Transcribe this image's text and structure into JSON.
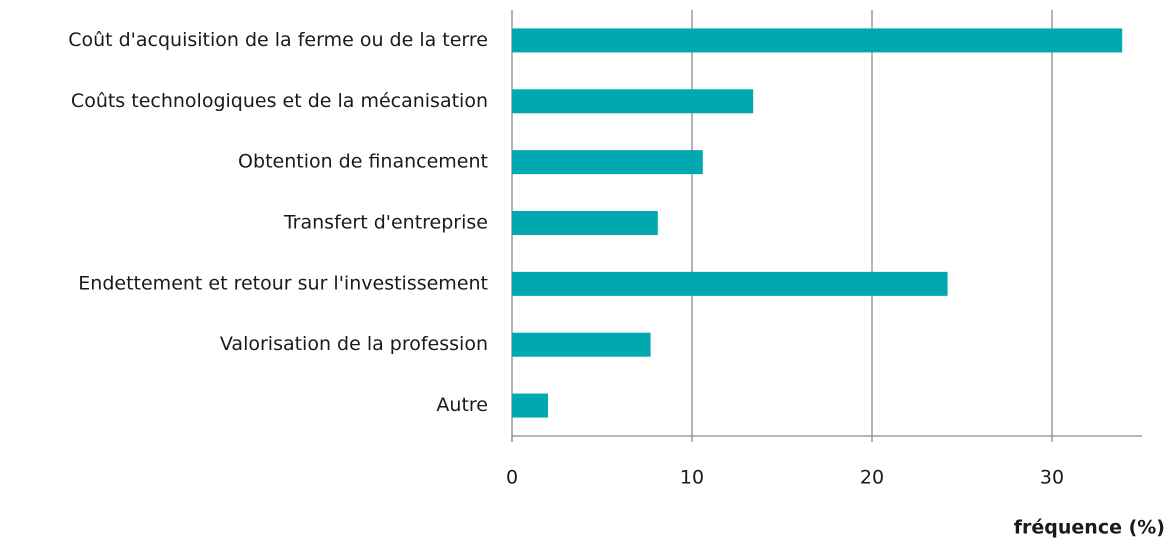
{
  "chart_data": {
    "type": "bar",
    "orientation": "horizontal",
    "x_label": "fréquence (%)",
    "categories": [
      "Coût d'acquisition de la ferme ou de la terre",
      "Coûts technologiques et de la mécanisation",
      "Obtention de financement",
      "Transfert d'entreprise",
      "Endettement et retour sur l'investissement",
      "Valorisation de la profession",
      "Autre"
    ],
    "values": [
      33.9,
      13.4,
      10.6,
      8.1,
      24.2,
      7.7,
      2.0
    ],
    "color": "#00a9b0",
    "xlim": [
      0,
      35
    ],
    "xticks": [
      0,
      10,
      20,
      30
    ],
    "grid": true
  }
}
